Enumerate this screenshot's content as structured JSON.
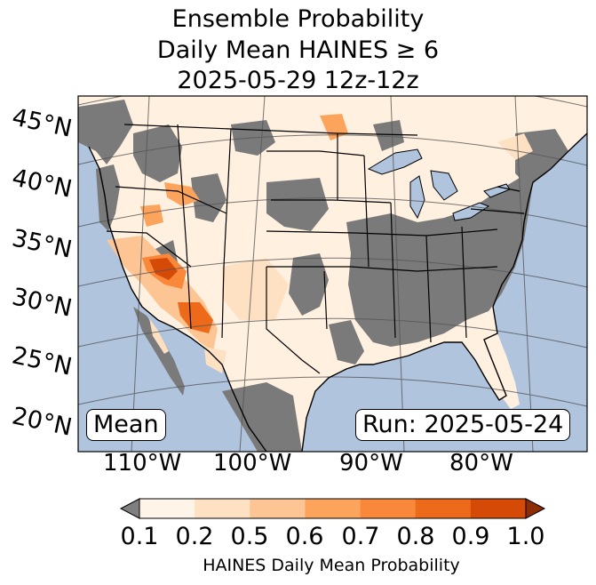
{
  "title": {
    "line1": "Ensemble Probability",
    "line2": "Daily Mean HAINES ≥ 6",
    "line3": "2025-05-29 12z-12z"
  },
  "map": {
    "lat_labels": [
      "45°N",
      "40°N",
      "35°N",
      "30°N",
      "25°N",
      "20°N"
    ],
    "lon_labels": [
      "110°W",
      "100°W",
      "90°W",
      "80°W"
    ],
    "stat_label": "Mean",
    "run_label": "Run: 2025-05-24",
    "colors": {
      "ocean": "#b0c4de",
      "land_zero": "#7a7a7a",
      "gridline": "#555555",
      "borders": "#000000"
    }
  },
  "colorbar": {
    "label": "HAINES Daily Mean Probability",
    "ticks": [
      "0.1",
      "0.2",
      "0.5",
      "0.6",
      "0.7",
      "0.8",
      "0.9",
      "1.0"
    ],
    "bin_colors": [
      "#fff4e8",
      "#fee0c2",
      "#fdc594",
      "#fda45c",
      "#f9883a",
      "#ec6a1a",
      "#d54a06"
    ],
    "under_color": "#7f7f7f",
    "over_color": "#8c2d04"
  }
}
